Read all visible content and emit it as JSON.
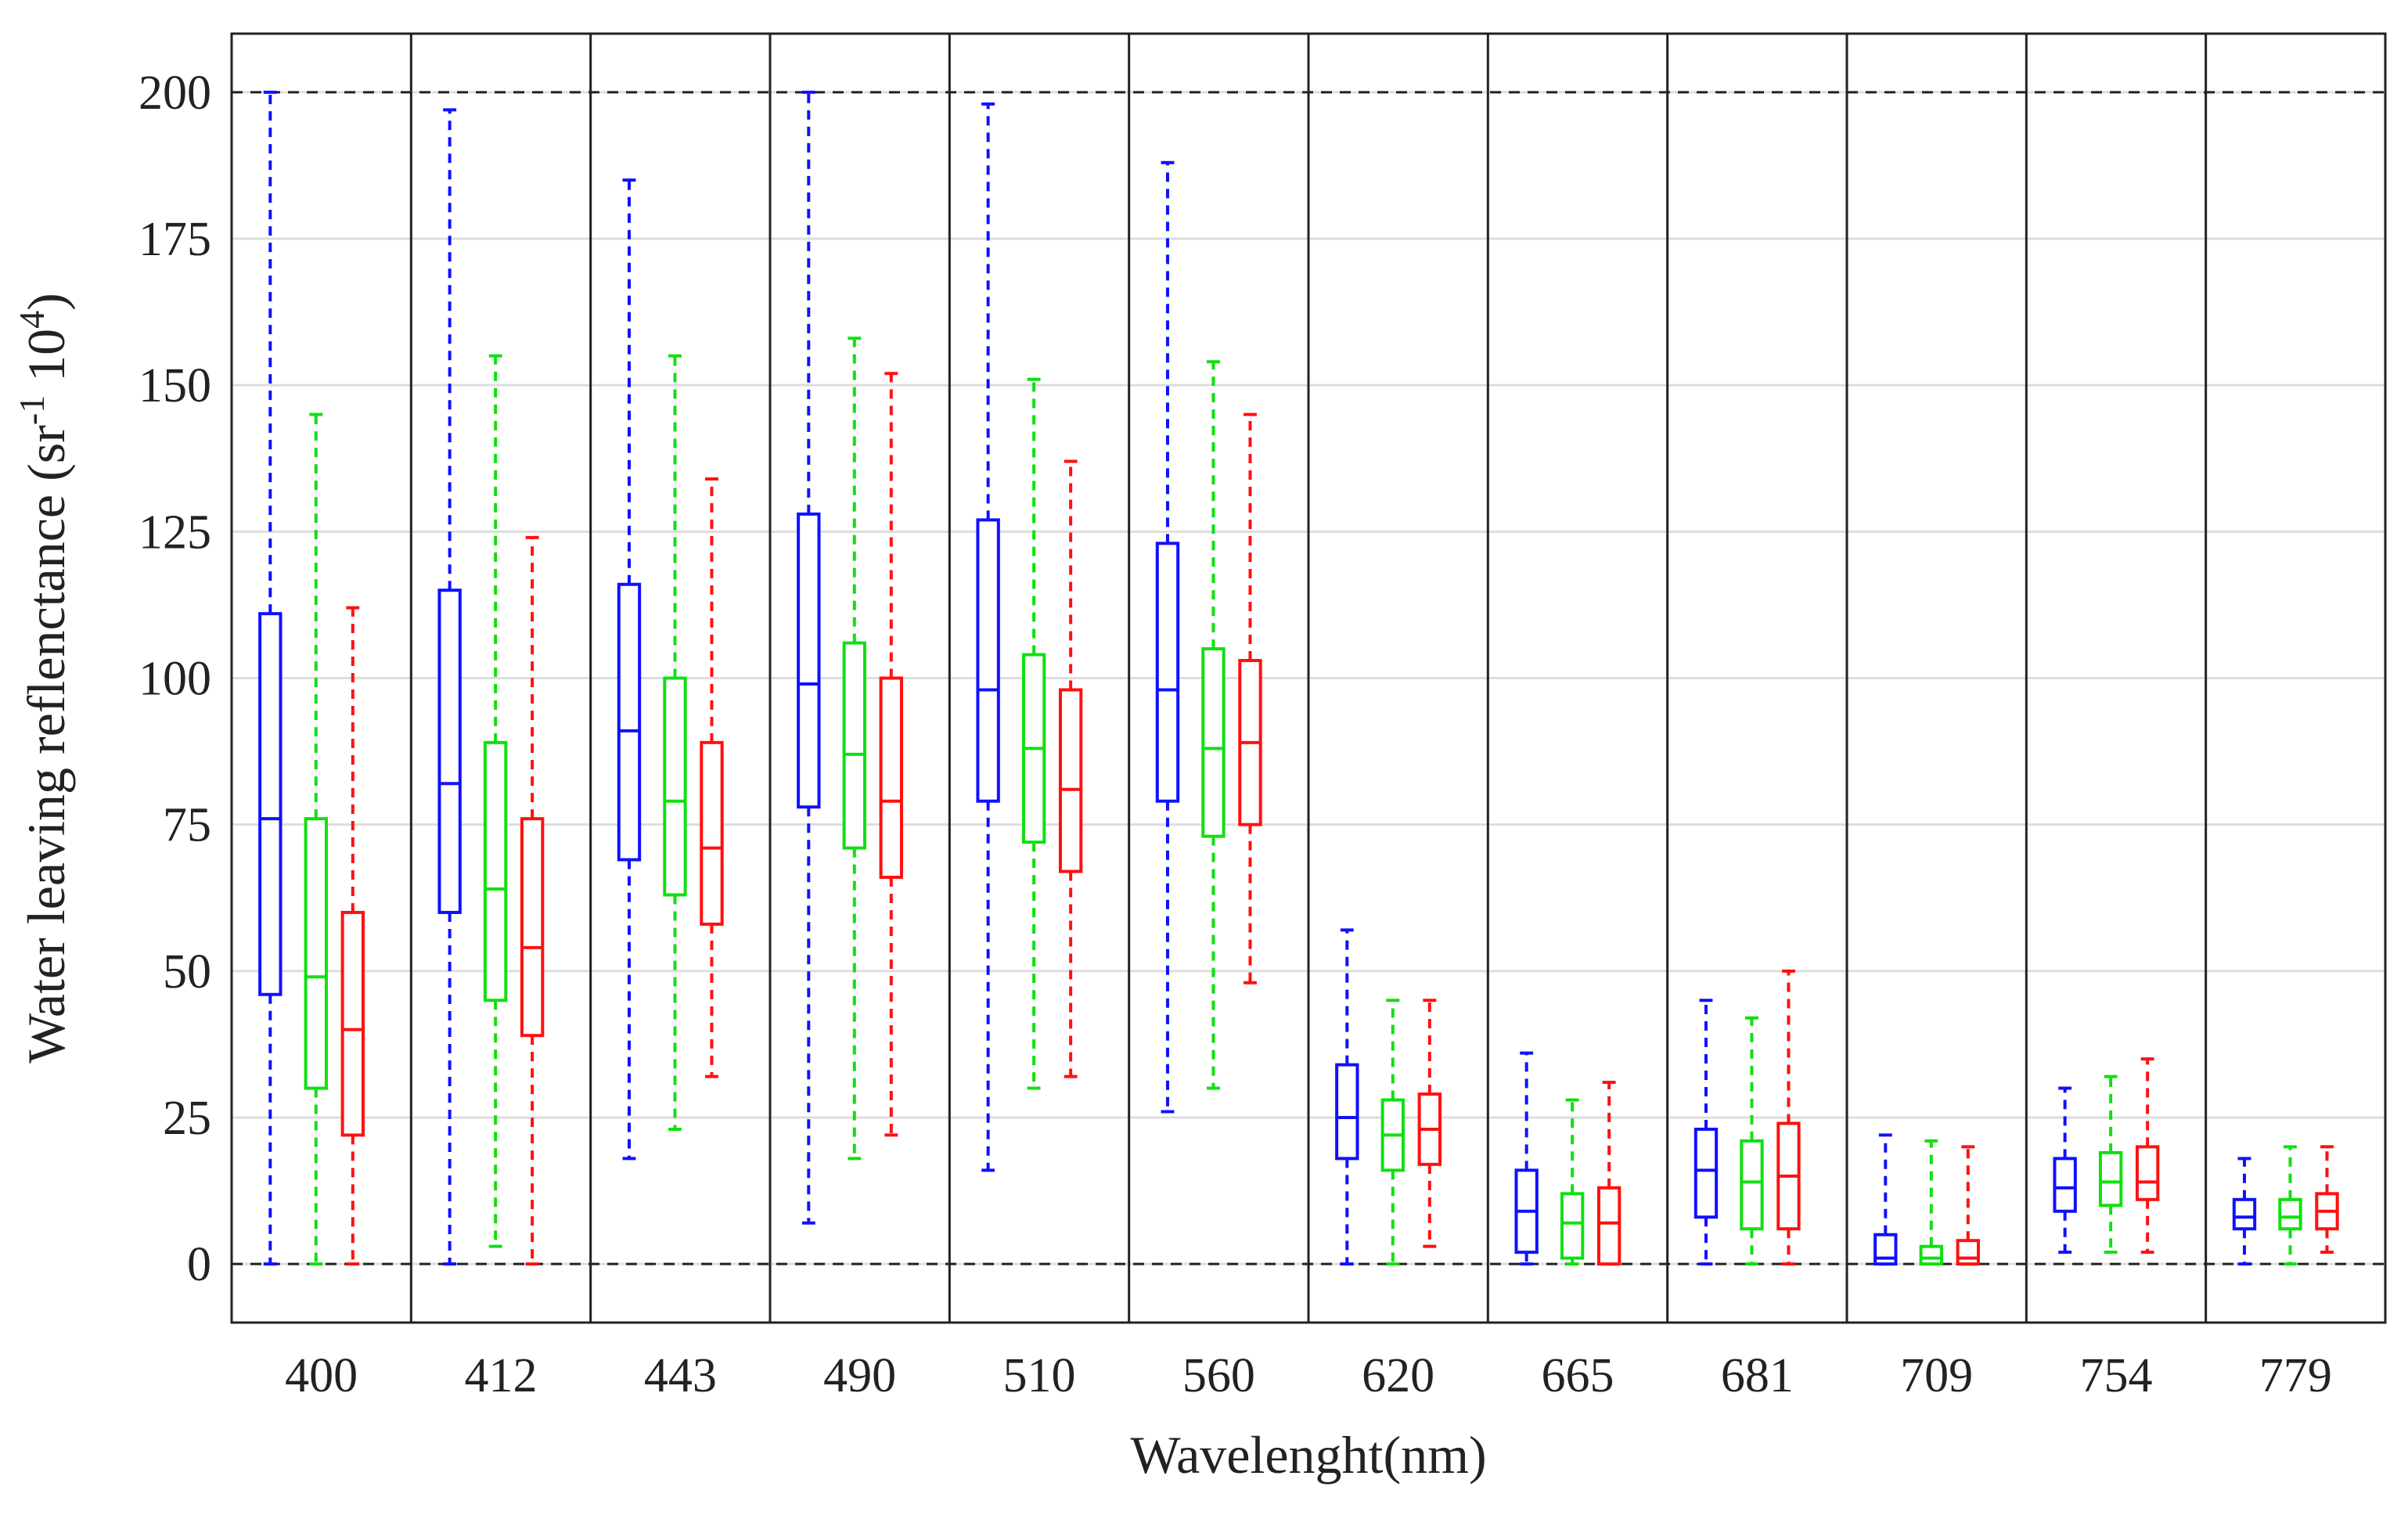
{
  "chart_data": {
    "type": "box",
    "xlabel": "Wavelenght(nm)",
    "ylabel": {
      "base": "Water leaving reflenctance (sr",
      "sup1": "-1",
      "mid": " 10",
      "sup2": "4",
      "end": ")"
    },
    "ylim": [
      -10,
      210
    ],
    "yticks": [
      0,
      25,
      50,
      75,
      100,
      125,
      150,
      175,
      200
    ],
    "reference_lines": [
      0,
      200
    ],
    "grid": "horizontal",
    "categories": [
      "400",
      "412",
      "443",
      "490",
      "510",
      "560",
      "620",
      "665",
      "681",
      "709",
      "754",
      "779"
    ],
    "series": [
      {
        "color": "#1010ff",
        "boxes": [
          {
            "whisker_low": 0,
            "q1": 46,
            "median": 76,
            "q3": 111,
            "whisker_high": 200
          },
          {
            "whisker_low": 0,
            "q1": 60,
            "median": 82,
            "q3": 115,
            "whisker_high": 197
          },
          {
            "whisker_low": 18,
            "q1": 69,
            "median": 91,
            "q3": 116,
            "whisker_high": 185
          },
          {
            "whisker_low": 7,
            "q1": 78,
            "median": 99,
            "q3": 128,
            "whisker_high": 200
          },
          {
            "whisker_low": 16,
            "q1": 79,
            "median": 98,
            "q3": 127,
            "whisker_high": 198
          },
          {
            "whisker_low": 26,
            "q1": 79,
            "median": 98,
            "q3": 123,
            "whisker_high": 188
          },
          {
            "whisker_low": 0,
            "q1": 18,
            "median": 25,
            "q3": 34,
            "whisker_high": 57
          },
          {
            "whisker_low": 0,
            "q1": 2,
            "median": 9,
            "q3": 16,
            "whisker_high": 36
          },
          {
            "whisker_low": 0,
            "q1": 8,
            "median": 16,
            "q3": 23,
            "whisker_high": 45
          },
          {
            "whisker_low": 0,
            "q1": 0,
            "median": 1,
            "q3": 5,
            "whisker_high": 22
          },
          {
            "whisker_low": 2,
            "q1": 9,
            "median": 13,
            "q3": 18,
            "whisker_high": 30
          },
          {
            "whisker_low": 0,
            "q1": 6,
            "median": 8,
            "q3": 11,
            "whisker_high": 18
          }
        ]
      },
      {
        "color": "#10e010",
        "boxes": [
          {
            "whisker_low": 0,
            "q1": 30,
            "median": 49,
            "q3": 76,
            "whisker_high": 145
          },
          {
            "whisker_low": 3,
            "q1": 45,
            "median": 64,
            "q3": 89,
            "whisker_high": 155
          },
          {
            "whisker_low": 23,
            "q1": 63,
            "median": 79,
            "q3": 100,
            "whisker_high": 155
          },
          {
            "whisker_low": 18,
            "q1": 71,
            "median": 87,
            "q3": 106,
            "whisker_high": 158
          },
          {
            "whisker_low": 30,
            "q1": 72,
            "median": 88,
            "q3": 104,
            "whisker_high": 151
          },
          {
            "whisker_low": 30,
            "q1": 73,
            "median": 88,
            "q3": 105,
            "whisker_high": 154
          },
          {
            "whisker_low": 0,
            "q1": 16,
            "median": 22,
            "q3": 28,
            "whisker_high": 45
          },
          {
            "whisker_low": 0,
            "q1": 1,
            "median": 7,
            "q3": 12,
            "whisker_high": 28
          },
          {
            "whisker_low": 0,
            "q1": 6,
            "median": 14,
            "q3": 21,
            "whisker_high": 42
          },
          {
            "whisker_low": 0,
            "q1": 0,
            "median": 1,
            "q3": 3,
            "whisker_high": 21
          },
          {
            "whisker_low": 2,
            "q1": 10,
            "median": 14,
            "q3": 19,
            "whisker_high": 32
          },
          {
            "whisker_low": 0,
            "q1": 6,
            "median": 8,
            "q3": 11,
            "whisker_high": 20
          }
        ]
      },
      {
        "color": "#ff1010",
        "boxes": [
          {
            "whisker_low": 0,
            "q1": 22,
            "median": 40,
            "q3": 60,
            "whisker_high": 112
          },
          {
            "whisker_low": 0,
            "q1": 39,
            "median": 54,
            "q3": 76,
            "whisker_high": 124
          },
          {
            "whisker_low": 32,
            "q1": 58,
            "median": 71,
            "q3": 89,
            "whisker_high": 134
          },
          {
            "whisker_low": 22,
            "q1": 66,
            "median": 79,
            "q3": 100,
            "whisker_high": 152
          },
          {
            "whisker_low": 32,
            "q1": 67,
            "median": 81,
            "q3": 98,
            "whisker_high": 137
          },
          {
            "whisker_low": 48,
            "q1": 75,
            "median": 89,
            "q3": 103,
            "whisker_high": 145
          },
          {
            "whisker_low": 3,
            "q1": 17,
            "median": 23,
            "q3": 29,
            "whisker_high": 45
          },
          {
            "whisker_low": 0,
            "q1": 0,
            "median": 7,
            "q3": 13,
            "whisker_high": 31
          },
          {
            "whisker_low": 0,
            "q1": 6,
            "median": 15,
            "q3": 24,
            "whisker_high": 50
          },
          {
            "whisker_low": 0,
            "q1": 0,
            "median": 1,
            "q3": 4,
            "whisker_high": 20
          },
          {
            "whisker_low": 2,
            "q1": 11,
            "median": 14,
            "q3": 20,
            "whisker_high": 35
          },
          {
            "whisker_low": 2,
            "q1": 6,
            "median": 9,
            "q3": 12,
            "whisker_high": 20
          }
        ]
      }
    ]
  }
}
